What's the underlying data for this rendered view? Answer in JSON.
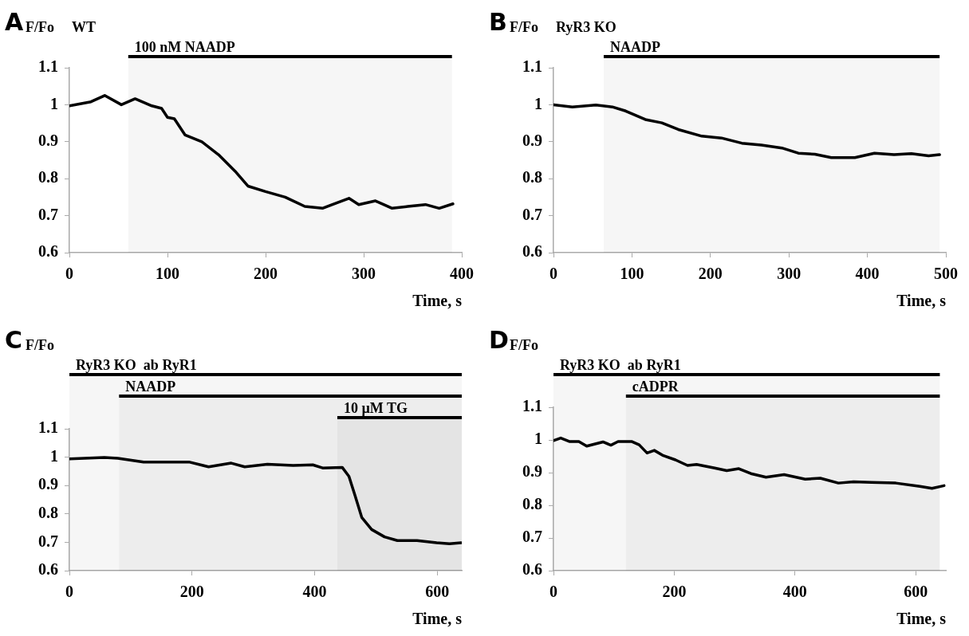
{
  "chart_data": [
    {
      "type": "line",
      "title": "A",
      "ylabel": "F/Fo",
      "xlabel": "Time, s",
      "annotations": [
        "WT"
      ],
      "bands": [
        {
          "axis": "x",
          "from": 60,
          "to": 390,
          "label": "100 nM NAADP",
          "color": "#000000"
        }
      ],
      "xlim": [
        0,
        400
      ],
      "xticks": [
        0,
        100,
        200,
        300,
        400
      ],
      "ylim": [
        0.6,
        1.1
      ],
      "yticks": [
        0.6,
        0.7,
        0.8,
        0.9,
        1,
        1.1
      ],
      "marker": "none",
      "series": [
        {
          "color": "#000000",
          "x": [
            0,
            22,
            36,
            53,
            67,
            84,
            94,
            100,
            107,
            118,
            135,
            152,
            169,
            182,
            200,
            220,
            240,
            258,
            285,
            295,
            312,
            329,
            345,
            363,
            377,
            391
          ],
          "values": [
            0.997,
            1.008,
            1.025,
            1.0,
            1.016,
            0.997,
            0.99,
            0.966,
            0.962,
            0.918,
            0.9,
            0.865,
            0.82,
            0.78,
            0.765,
            0.75,
            0.725,
            0.72,
            0.747,
            0.73,
            0.74,
            0.72,
            0.725,
            0.73,
            0.72,
            0.732
          ]
        }
      ]
    },
    {
      "type": "line",
      "title": "B",
      "ylabel": "F/Fo",
      "xlabel": "Time, s",
      "annotations": [
        "RyR3 KO"
      ],
      "bands": [
        {
          "axis": "x",
          "from": 64,
          "to": 492,
          "label": "NAADP",
          "color": "#000000"
        }
      ],
      "xlim": [
        0,
        500
      ],
      "xticks": [
        0,
        100,
        200,
        300,
        400,
        500
      ],
      "ylim": [
        0.6,
        1.1
      ],
      "yticks": [
        0.6,
        0.7,
        0.8,
        0.9,
        1,
        1.1
      ],
      "marker": "none",
      "series": [
        {
          "color": "#000000",
          "x": [
            0,
            24,
            54,
            75,
            92,
            117,
            138,
            159,
            189,
            214,
            240,
            265,
            291,
            312,
            333,
            354,
            384,
            409,
            434,
            456,
            478,
            492
          ],
          "values": [
            1.0,
            0.994,
            0.999,
            0.994,
            0.983,
            0.96,
            0.951,
            0.933,
            0.915,
            0.91,
            0.896,
            0.891,
            0.883,
            0.869,
            0.866,
            0.857,
            0.857,
            0.869,
            0.865,
            0.868,
            0.862,
            0.865
          ]
        }
      ]
    },
    {
      "type": "line",
      "title": "C",
      "ylabel": "F/Fo",
      "xlabel": "Time, s",
      "bands": [
        {
          "axis": "x",
          "from": 0,
          "to": 640,
          "label": "RyR3 KO  ab RyR1",
          "color": "#000000"
        },
        {
          "axis": "x",
          "from": 81,
          "to": 640,
          "label": "NAADP",
          "color": "#000000"
        },
        {
          "axis": "x",
          "from": 437,
          "to": 640,
          "label": "10 µM TG",
          "color": "#000000"
        }
      ],
      "xlim": [
        0,
        640
      ],
      "xticks": [
        0,
        200,
        400,
        600
      ],
      "ylim": [
        0.6,
        1.1
      ],
      "yticks": [
        0.6,
        0.7,
        0.8,
        0.9,
        1,
        1.1
      ],
      "marker": "none",
      "series": [
        {
          "color": "#000000",
          "x": [
            0,
            57,
            79,
            121,
            164,
            195,
            227,
            264,
            286,
            323,
            365,
            397,
            413,
            445,
            456,
            466,
            477,
            493,
            514,
            535,
            567,
            599,
            620,
            639
          ],
          "values": [
            0.994,
            0.999,
            0.996,
            0.983,
            0.983,
            0.983,
            0.966,
            0.979,
            0.966,
            0.975,
            0.971,
            0.973,
            0.962,
            0.964,
            0.932,
            0.864,
            0.787,
            0.745,
            0.719,
            0.706,
            0.706,
            0.698,
            0.695,
            0.698
          ]
        }
      ]
    },
    {
      "type": "line",
      "title": "D",
      "ylabel": "F/Fo",
      "xlabel": "Time, s",
      "bands": [
        {
          "axis": "x",
          "from": 0,
          "to": 640,
          "label": "RyR3 KO  ab RyR1",
          "color": "#000000"
        },
        {
          "axis": "x",
          "from": 120,
          "to": 640,
          "label": "cADPR",
          "color": "#000000"
        }
      ],
      "xlim": [
        0,
        650
      ],
      "xticks": [
        0,
        200,
        400,
        600
      ],
      "ylim": [
        0.6,
        1.1
      ],
      "yticks": [
        0.6,
        0.7,
        0.8,
        0.9,
        1,
        1.1
      ],
      "marker": "none",
      "series": [
        {
          "color": "#000000",
          "x": [
            0,
            12,
            27,
            42,
            55,
            82,
            95,
            107,
            130,
            142,
            155,
            167,
            182,
            202,
            222,
            237,
            267,
            287,
            307,
            327,
            352,
            382,
            417,
            442,
            472,
            497,
            527,
            567,
            607,
            627,
            647
          ],
          "values": [
            0.998,
            1.006,
            0.995,
            0.995,
            0.981,
            0.994,
            0.984,
            0.995,
            0.995,
            0.985,
            0.96,
            0.968,
            0.952,
            0.939,
            0.922,
            0.925,
            0.914,
            0.906,
            0.912,
            0.897,
            0.886,
            0.894,
            0.88,
            0.883,
            0.868,
            0.872,
            0.87,
            0.868,
            0.858,
            0.852,
            0.86
          ]
        }
      ]
    }
  ]
}
